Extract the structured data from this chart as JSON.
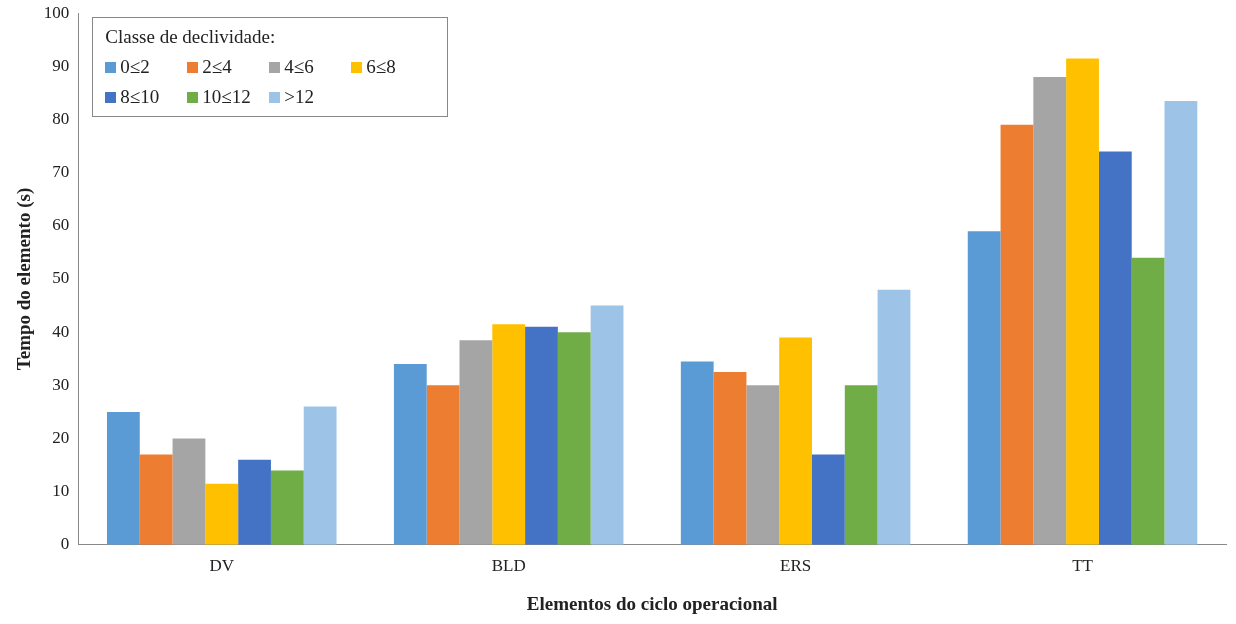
{
  "chart_data": {
    "type": "bar",
    "xlabel": "Elementos do ciclo operacional",
    "ylabel": "Tempo do elemento (s)",
    "legend_title": "Classe de declividade:",
    "legend": "top left",
    "grid": false,
    "categories": [
      "DV",
      "BLD",
      "ERS",
      "TT"
    ],
    "ylim": [
      0,
      100
    ],
    "yticks": [
      0,
      10,
      20,
      30,
      40,
      50,
      60,
      70,
      80,
      90,
      100
    ],
    "series": [
      {
        "name": "0≤2",
        "color": "#5b9bd5",
        "values": [
          25,
          34,
          34.5,
          59
        ]
      },
      {
        "name": "2≤4",
        "color": "#ed7d31",
        "values": [
          17,
          30,
          32.5,
          79
        ]
      },
      {
        "name": "4≤6",
        "color": "#a5a5a5",
        "values": [
          20,
          38.5,
          30,
          88
        ]
      },
      {
        "name": "6≤8",
        "color": "#ffc000",
        "values": [
          11.5,
          41.5,
          39,
          91.5
        ]
      },
      {
        "name": "8≤10",
        "color": "#4472c4",
        "values": [
          16,
          41,
          17,
          74
        ]
      },
      {
        "name": "10≤12",
        "color": "#70ad47",
        "values": [
          14,
          40,
          30,
          54
        ]
      },
      {
        "name": ">12",
        "color": "#9dc3e6",
        "values": [
          26,
          45,
          48,
          83.5
        ]
      }
    ]
  }
}
